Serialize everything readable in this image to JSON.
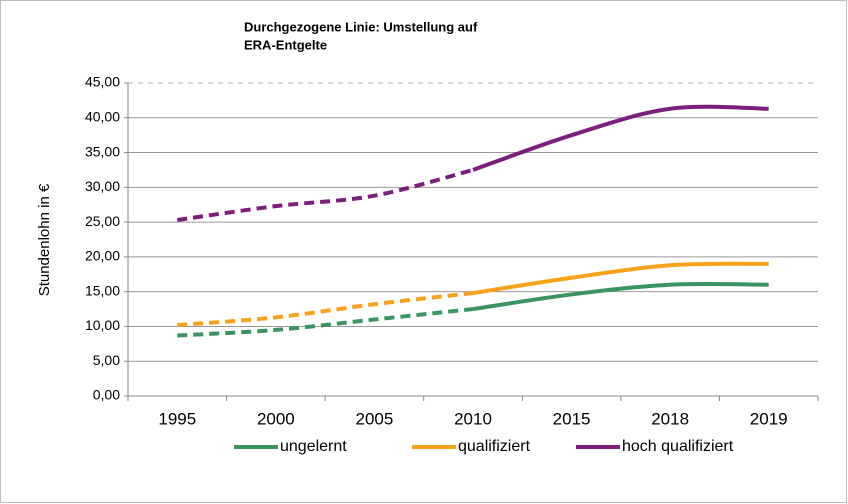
{
  "chart_data": {
    "type": "line",
    "annotation": [
      "Durchgezogene Linie: Umstellung auf",
      "ERA-Entgelte"
    ],
    "y_label": "Stundenlohn in €",
    "categories": [
      "1995",
      "2000",
      "2005",
      "2010",
      "2015",
      "2018",
      "2019"
    ],
    "dashed_until_index": 3,
    "series": [
      {
        "name": "ungelernt",
        "color": "#3a9460",
        "values": [
          8.7,
          9.5,
          11.0,
          12.5,
          14.6,
          16.0,
          16.0
        ]
      },
      {
        "name": "qualifiziert",
        "color": "#f8a21c",
        "values": [
          10.2,
          11.3,
          13.2,
          14.8,
          17.0,
          18.8,
          19.0
        ]
      },
      {
        "name": "hoch qualifiziert",
        "color": "#7b1f7c",
        "values": [
          25.3,
          27.3,
          28.8,
          32.5,
          37.5,
          41.3,
          41.3
        ]
      }
    ],
    "ylim": [
      0,
      45
    ],
    "yticks": [
      {
        "value": 0,
        "label": "0,00"
      },
      {
        "value": 5,
        "label": "5,00"
      },
      {
        "value": 10,
        "label": "10,00"
      },
      {
        "value": 15,
        "label": "15,00"
      },
      {
        "value": 20,
        "label": "20,00"
      },
      {
        "value": 25,
        "label": "25,00"
      },
      {
        "value": 30,
        "label": "30,00"
      },
      {
        "value": 35,
        "label": "35,00"
      },
      {
        "value": 40,
        "label": "40,00"
      },
      {
        "value": 45,
        "label": "45,00"
      }
    ],
    "grid": true
  }
}
